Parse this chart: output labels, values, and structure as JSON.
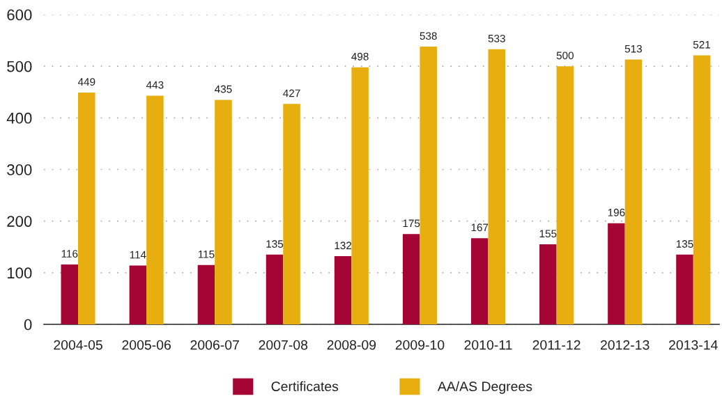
{
  "chart_data": {
    "type": "bar",
    "categories": [
      "2004-05",
      "2005-06",
      "2006-07",
      "2007-08",
      "2008-09",
      "2009-10",
      "2010-11",
      "2011-12",
      "2012-13",
      "2013-14"
    ],
    "series": [
      {
        "name": "Certificates",
        "color": "#a50534",
        "values": [
          116,
          114,
          115,
          135,
          132,
          175,
          167,
          155,
          196,
          135
        ]
      },
      {
        "name": "AA/AS Degrees",
        "color": "#e8ae10",
        "values": [
          449,
          443,
          435,
          427,
          498,
          538,
          533,
          500,
          513,
          521
        ]
      }
    ],
    "ylim": [
      0,
      600
    ],
    "yticks": [
      0,
      100,
      200,
      300,
      400,
      500,
      600
    ],
    "grid": "y",
    "data_labels": true,
    "legend": "bottom"
  }
}
